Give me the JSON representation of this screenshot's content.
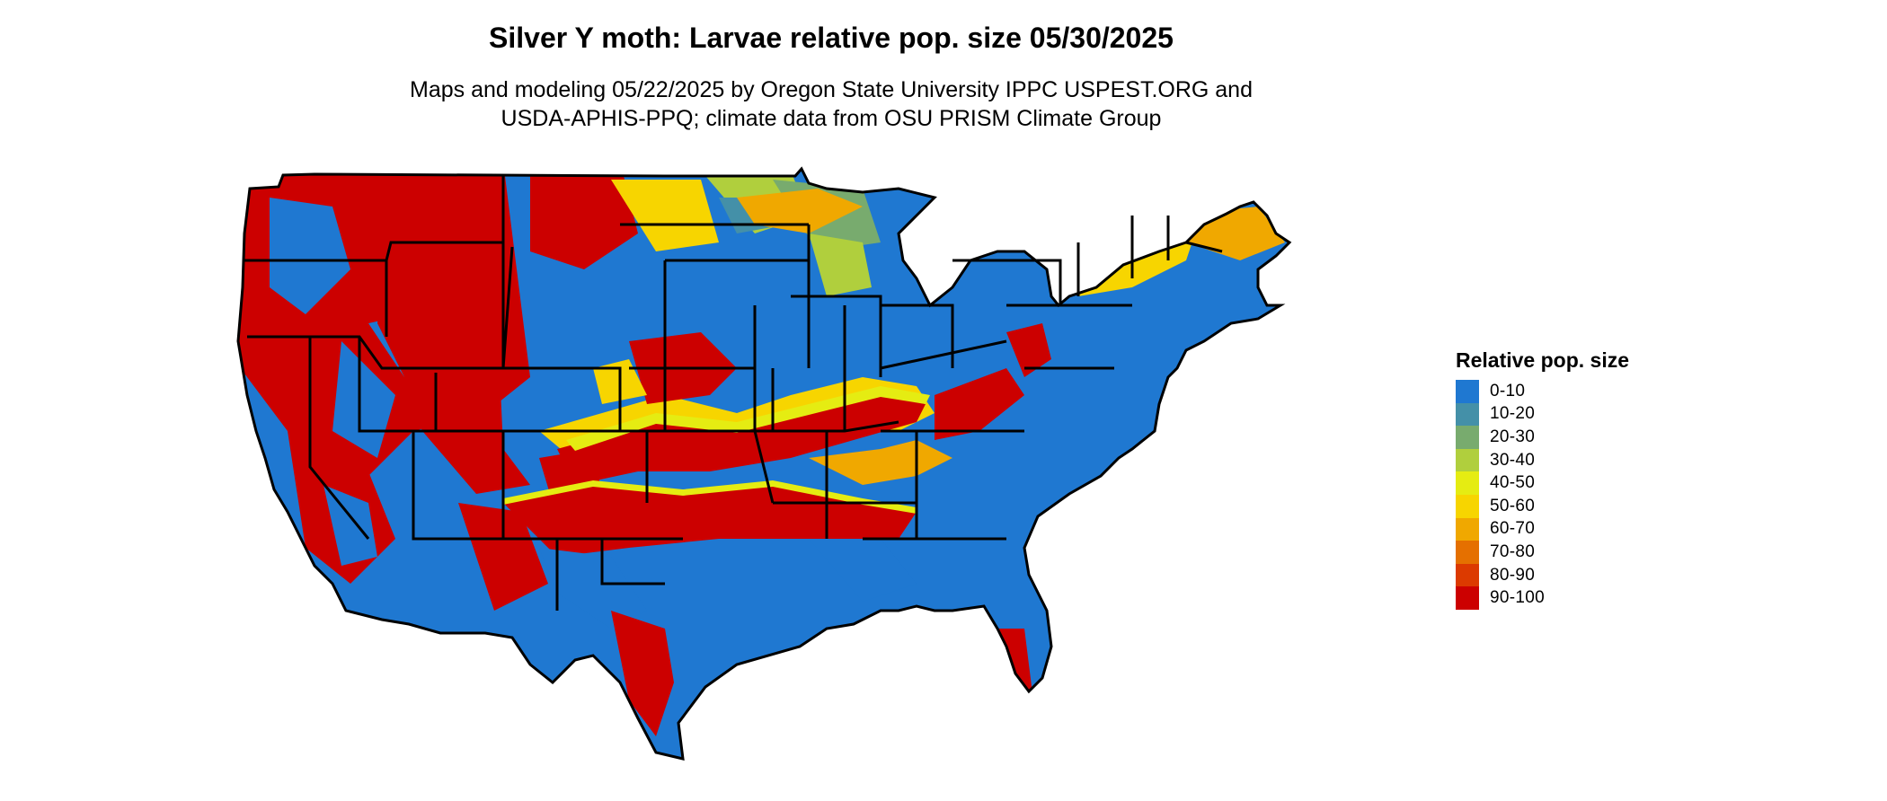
{
  "title": "Silver Y moth: Larvae relative pop. size 05/30/2025",
  "subtitle": {
    "line1": "Maps and modeling 05/22/2025 by Oregon State University IPPC USPEST.ORG and",
    "line2": "USDA-APHIS-PPQ; climate data from OSU PRISM Climate Group"
  },
  "map": {
    "region": "Contiguous United States",
    "variable": "Relative pop. size"
  },
  "legend": {
    "title": "Relative pop. size",
    "items": [
      {
        "label": "0-10",
        "color": "#1f78d1"
      },
      {
        "label": "10-20",
        "color": "#4490a8"
      },
      {
        "label": "20-30",
        "color": "#78ab6e"
      },
      {
        "label": "30-40",
        "color": "#b0cf3d"
      },
      {
        "label": "40-50",
        "color": "#e5ec12"
      },
      {
        "label": "50-60",
        "color": "#f7d500"
      },
      {
        "label": "60-70",
        "color": "#f0a800"
      },
      {
        "label": "70-80",
        "color": "#e57000"
      },
      {
        "label": "80-90",
        "color": "#dc3a00"
      },
      {
        "label": "90-100",
        "color": "#cc0000"
      }
    ]
  }
}
